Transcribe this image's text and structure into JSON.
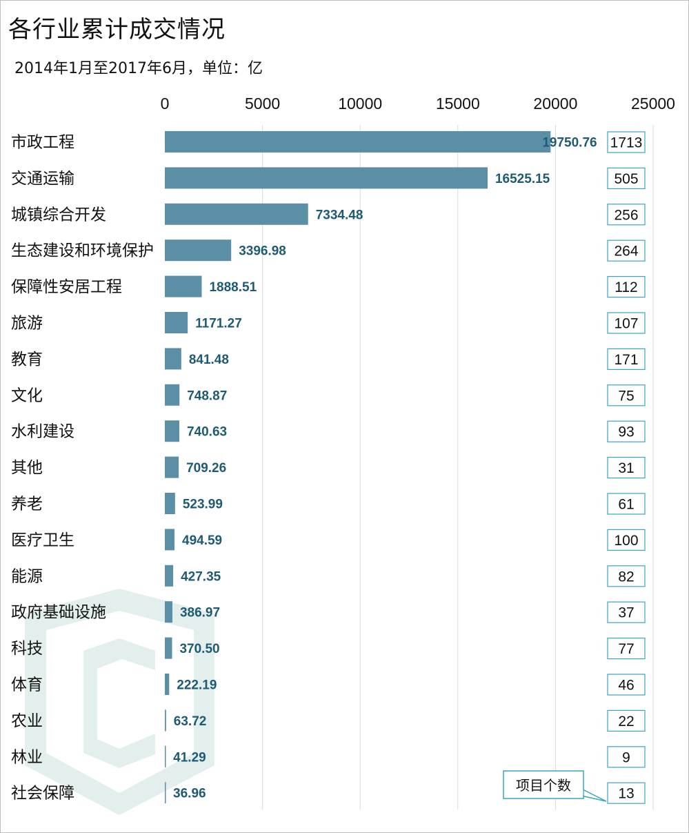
{
  "title": "各行业累计成交情况",
  "subtitle": "2014年1月至2017年6月，单位：亿",
  "colors": {
    "bar": "#5b8fa6",
    "data_label": "#1f5a73",
    "gridline": "#d9d9d9",
    "count_box_border": "#3aa3c4",
    "watermark": "#e3efec"
  },
  "chart_data": {
    "type": "bar",
    "orientation": "horizontal",
    "title": "各行业累计成交情况",
    "subtitle": "2014年1月至2017年6月，单位：亿",
    "xlim": [
      0,
      25000
    ],
    "x_ticks": [
      "0",
      "5000",
      "10000",
      "15000",
      "20000",
      "25000"
    ],
    "grid": true,
    "categories": [
      "市政工程",
      "交通运输",
      "城镇综合开发",
      "生态建设和环境保护",
      "保障性安居工程",
      "旅游",
      "教育",
      "文化",
      "水利建设",
      "其他",
      "养老",
      "医疗卫生",
      "能源",
      "政府基础设施",
      "科技",
      "体育",
      "农业",
      "林业",
      "社会保障"
    ],
    "values": [
      19750.76,
      16525.15,
      7334.48,
      3396.98,
      1888.51,
      1171.27,
      841.48,
      748.87,
      740.63,
      709.26,
      523.99,
      494.59,
      427.35,
      386.97,
      370.5,
      222.19,
      63.72,
      41.29,
      36.96
    ],
    "value_labels": [
      "19750.76",
      "16525.15",
      "7334.48",
      "3396.98",
      "1888.51",
      "1171.27",
      "841.48",
      "748.87",
      "740.63",
      "709.26",
      "523.99",
      "494.59",
      "427.35",
      "386.97",
      "370.50",
      "222.19",
      "63.72",
      "41.29",
      "36.96"
    ],
    "project_counts": [
      "1713",
      "505",
      "256",
      "264",
      "112",
      "107",
      "171",
      "75",
      "93",
      "31",
      "61",
      "100",
      "82",
      "37",
      "77",
      "46",
      "22",
      "9",
      "13"
    ],
    "annotation": "项目个数"
  }
}
